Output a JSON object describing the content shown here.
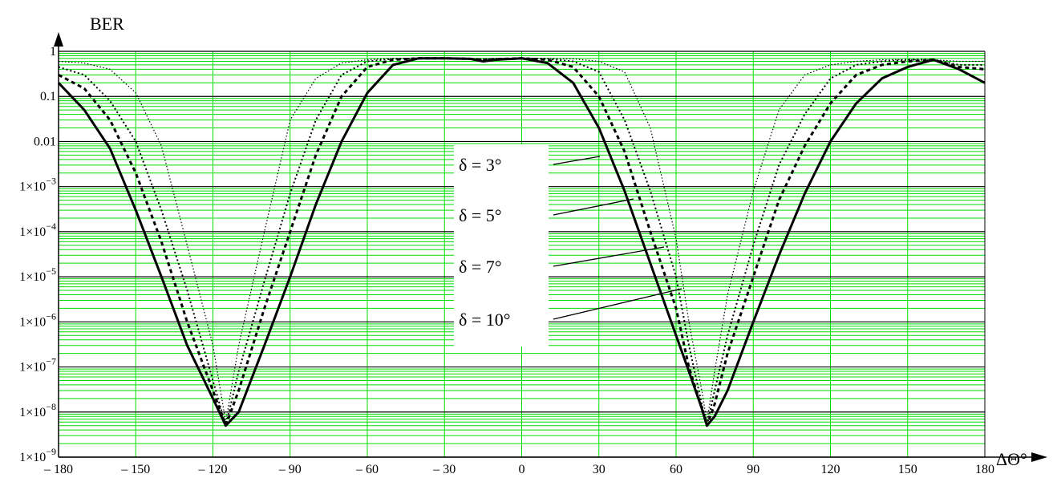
{
  "chart_data": {
    "type": "line",
    "ylabel": "BER",
    "xlabel": "ΔΘ°",
    "x_scale": "linear",
    "y_scale": "log",
    "xlim": [
      -180,
      180
    ],
    "ylim": [
      1e-09,
      1
    ],
    "grid": true,
    "grid_color": "#00dd00",
    "major_grid_color": "#000000",
    "x_ticks": [
      {
        "value": -180,
        "label": "– 180"
      },
      {
        "value": -150,
        "label": "– 150"
      },
      {
        "value": -120,
        "label": "– 120"
      },
      {
        "value": -90,
        "label": "– 90"
      },
      {
        "value": -60,
        "label": "– 60"
      },
      {
        "value": -30,
        "label": "– 30"
      },
      {
        "value": 0,
        "label": "0"
      },
      {
        "value": 30,
        "label": "30"
      },
      {
        "value": 60,
        "label": "60"
      },
      {
        "value": 90,
        "label": "90"
      },
      {
        "value": 120,
        "label": "120"
      },
      {
        "value": 150,
        "label": "150"
      },
      {
        "value": 180,
        "label": "180"
      }
    ],
    "y_ticks": [
      {
        "value": 1,
        "base": "1",
        "exp": ""
      },
      {
        "value": 0.1,
        "base": "0.1",
        "exp": ""
      },
      {
        "value": 0.01,
        "base": "0.01",
        "exp": ""
      },
      {
        "value": 0.001,
        "base": "1×10",
        "exp": "−3"
      },
      {
        "value": 0.0001,
        "base": "1×10",
        "exp": "−4"
      },
      {
        "value": 1e-05,
        "base": "1×10",
        "exp": "−5"
      },
      {
        "value": 1e-06,
        "base": "1×10",
        "exp": "−6"
      },
      {
        "value": 1e-07,
        "base": "1×10",
        "exp": "−7"
      },
      {
        "value": 1e-08,
        "base": "1×10",
        "exp": "−8"
      },
      {
        "value": 1e-09,
        "base": "1×10",
        "exp": "−9"
      }
    ],
    "series": [
      {
        "name": "δ = 3°",
        "style": "solid",
        "x": [
          -180,
          -170,
          -160,
          -150,
          -140,
          -130,
          -120,
          -115,
          -110,
          -100,
          -90,
          -80,
          -70,
          -60,
          -50,
          -40,
          -30,
          -20,
          -15,
          -10,
          0,
          10,
          20,
          30,
          40,
          50,
          60,
          65,
          70,
          72,
          75,
          80,
          90,
          100,
          110,
          120,
          130,
          140,
          150,
          160,
          170,
          180
        ],
        "y": [
          0.2,
          0.05,
          0.007,
          0.0003,
          1e-05,
          3e-07,
          2e-08,
          5e-09,
          1e-08,
          3e-07,
          1e-05,
          0.0004,
          0.01,
          0.12,
          0.5,
          0.7,
          0.7,
          0.68,
          0.6,
          0.65,
          0.7,
          0.55,
          0.2,
          0.02,
          0.0008,
          2e-05,
          5e-07,
          8e-08,
          1.2e-08,
          5e-09,
          8e-09,
          3e-08,
          1e-06,
          3e-05,
          0.0007,
          0.01,
          0.07,
          0.25,
          0.45,
          0.65,
          0.4,
          0.2
        ]
      },
      {
        "name": "δ = 5°",
        "style": "dashed",
        "x": [
          -180,
          -170,
          -160,
          -150,
          -140,
          -130,
          -120,
          -115,
          -110,
          -100,
          -90,
          -80,
          -70,
          -60,
          -50,
          -40,
          -30,
          -20,
          -15,
          -10,
          0,
          10,
          20,
          30,
          40,
          50,
          60,
          65,
          70,
          72,
          75,
          80,
          90,
          100,
          110,
          120,
          130,
          140,
          150,
          160,
          170,
          180
        ],
        "y": [
          0.3,
          0.15,
          0.03,
          0.002,
          6e-05,
          1e-06,
          3e-08,
          5e-09,
          3e-08,
          2e-06,
          0.0001,
          0.005,
          0.1,
          0.45,
          0.65,
          0.7,
          0.7,
          0.68,
          0.65,
          0.67,
          0.7,
          0.65,
          0.45,
          0.1,
          0.006,
          0.0001,
          2e-06,
          1e-07,
          1.2e-08,
          5e-09,
          1.5e-08,
          2e-07,
          1e-05,
          0.0005,
          0.008,
          0.07,
          0.3,
          0.5,
          0.6,
          0.65,
          0.45,
          0.4
        ]
      },
      {
        "name": "δ = 7°",
        "style": "dotted",
        "x": [
          -180,
          -170,
          -160,
          -150,
          -140,
          -130,
          -120,
          -115,
          -110,
          -100,
          -90,
          -80,
          -70,
          -60,
          -50,
          -40,
          -30,
          -20,
          -15,
          -10,
          0,
          10,
          20,
          30,
          40,
          50,
          60,
          65,
          70,
          72,
          75,
          80,
          90,
          100,
          110,
          120,
          130,
          140,
          150,
          160,
          170,
          180
        ],
        "y": [
          0.45,
          0.3,
          0.08,
          0.01,
          0.0003,
          5e-06,
          5e-08,
          5e-09,
          8e-08,
          8e-06,
          0.0007,
          0.03,
          0.3,
          0.6,
          0.68,
          0.7,
          0.7,
          0.68,
          0.66,
          0.68,
          0.7,
          0.68,
          0.6,
          0.35,
          0.03,
          0.0008,
          1e-05,
          3e-07,
          1.5e-08,
          5e-09,
          3e-08,
          5e-07,
          5e-05,
          0.003,
          0.04,
          0.25,
          0.5,
          0.6,
          0.65,
          0.65,
          0.5,
          0.5
        ]
      },
      {
        "name": "δ = 10°",
        "style": "fine-dotted",
        "x": [
          -180,
          -170,
          -160,
          -150,
          -140,
          -130,
          -120,
          -115,
          -110,
          -100,
          -90,
          -80,
          -70,
          -60,
          -50,
          -40,
          -30,
          -20,
          -15,
          -10,
          0,
          10,
          20,
          30,
          40,
          50,
          60,
          65,
          70,
          72,
          75,
          80,
          90,
          100,
          110,
          120,
          130,
          140,
          150,
          160,
          170,
          180
        ],
        "y": [
          0.6,
          0.55,
          0.4,
          0.12,
          0.008,
          5e-05,
          3e-07,
          6e-09,
          3e-07,
          0.0001,
          0.03,
          0.25,
          0.55,
          0.65,
          0.7,
          0.7,
          0.7,
          0.7,
          0.68,
          0.7,
          0.7,
          0.7,
          0.68,
          0.6,
          0.35,
          0.02,
          7e-05,
          1e-06,
          3e-08,
          6e-09,
          8e-08,
          4e-06,
          0.0008,
          0.05,
          0.3,
          0.5,
          0.6,
          0.65,
          0.65,
          0.65,
          0.6,
          0.6
        ]
      }
    ],
    "annotations": [
      "δ = 3°",
      "δ = 5°",
      "δ = 7°",
      "δ = 10°"
    ]
  }
}
